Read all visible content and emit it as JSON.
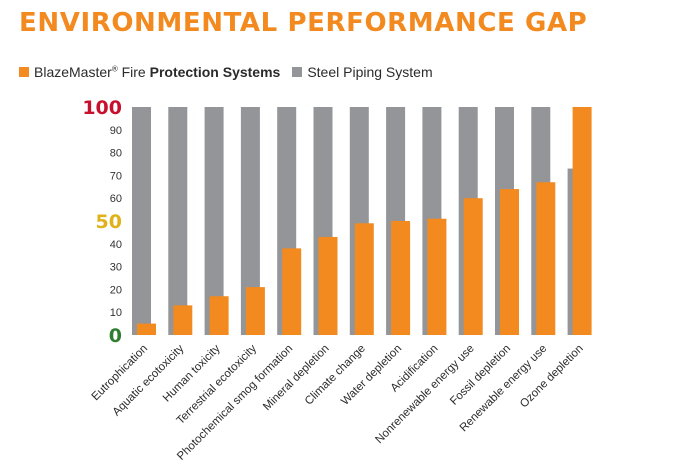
{
  "title": "ENVIRONMENTAL PERFORMANCE GAP",
  "legend": {
    "items": [
      {
        "label_main": "BlazeMaster",
        "label_mark": "®",
        "label_plain": " Fire ",
        "label_bold": "Protection Systems",
        "color": "#f28a1f"
      },
      {
        "label_main": "Steel Piping System",
        "label_mark": "",
        "label_plain": "",
        "label_bold": "",
        "color": "#939598"
      }
    ]
  },
  "chart_data": {
    "type": "bar",
    "categories": [
      "Eutrophication",
      "Aquatic ecotoxicity",
      "Human toxicity",
      "Terrestrial ecotoxicity",
      "Photochemical smog formation",
      "Mineral depletion",
      "Climate change",
      "Water depletion",
      "Acidification",
      "Nonrenewable energy use",
      "Fossil depletion",
      "Renewable energy use",
      "Ozone depletion"
    ],
    "series": [
      {
        "name": "Steel Piping System",
        "color": "#939598",
        "values": [
          100,
          100,
          100,
          100,
          100,
          100,
          100,
          100,
          100,
          100,
          100,
          100,
          73
        ]
      },
      {
        "name": "BlazeMaster® Fire Protection Systems",
        "color": "#f28a1f",
        "values": [
          5,
          13,
          17,
          21,
          38,
          43,
          49,
          50,
          51,
          60,
          64,
          67,
          100
        ]
      }
    ],
    "ylim": [
      0,
      100
    ],
    "yticks": [
      {
        "value": 0,
        "label": "0",
        "color": "#2e7d32",
        "big": true
      },
      {
        "value": 10,
        "label": "10",
        "color": "#333333",
        "big": false
      },
      {
        "value": 20,
        "label": "20",
        "color": "#333333",
        "big": false
      },
      {
        "value": 30,
        "label": "30",
        "color": "#333333",
        "big": false
      },
      {
        "value": 40,
        "label": "40",
        "color": "#333333",
        "big": false
      },
      {
        "value": 50,
        "label": "50",
        "color": "#e0b21a",
        "big": true
      },
      {
        "value": 60,
        "label": "60",
        "color": "#333333",
        "big": false
      },
      {
        "value": 70,
        "label": "70",
        "color": "#333333",
        "big": false
      },
      {
        "value": 80,
        "label": "80",
        "color": "#333333",
        "big": false
      },
      {
        "value": 90,
        "label": "90",
        "color": "#333333",
        "big": false
      },
      {
        "value": 100,
        "label": "100",
        "color": "#c8102e",
        "big": true
      }
    ],
    "grid": false,
    "legend_position": "top-left"
  }
}
